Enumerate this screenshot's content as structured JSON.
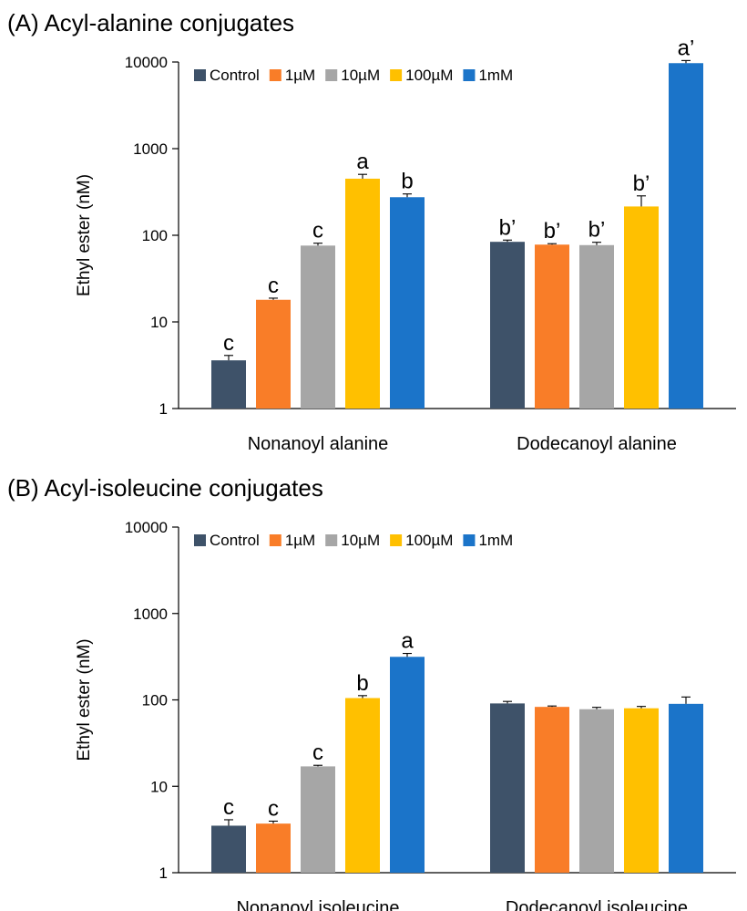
{
  "colors": {
    "Control": "#3e5269",
    "1µM": "#f97d28",
    "10µM": "#a6a6a6",
    "100µM": "#ffc000",
    "1mM": "#1b74c9"
  },
  "chart_data": [
    {
      "type": "bar",
      "title": "(A) Acyl-alanine conjugates",
      "ylabel": "Ethyl ester (nM)",
      "xlabel": "",
      "yscale": "log",
      "ylim": [
        1,
        10000
      ],
      "yticks": [
        "1",
        "10",
        "100",
        "1000",
        "10000"
      ],
      "legend_position": "top-left",
      "categories": [
        "Nonanoyl alanine",
        "Dodecanoyl alanine"
      ],
      "series": [
        {
          "name": "Control",
          "values": [
            3.6,
            84
          ],
          "errors": [
            0.5,
            4
          ],
          "labels": [
            "c",
            "b’"
          ]
        },
        {
          "name": "1µM",
          "values": [
            18,
            78
          ],
          "errors": [
            0.8,
            2
          ],
          "labels": [
            "c",
            "b’"
          ]
        },
        {
          "name": "10µM",
          "values": [
            76,
            77
          ],
          "errors": [
            5,
            6
          ],
          "labels": [
            "c",
            "b’"
          ]
        },
        {
          "name": "100µM",
          "values": [
            450,
            215
          ],
          "errors": [
            55,
            70
          ],
          "labels": [
            "a",
            "b’"
          ]
        },
        {
          "name": "1mM",
          "values": [
            275,
            9700
          ],
          "errors": [
            25,
            700
          ],
          "labels": [
            "b",
            "a’"
          ]
        }
      ]
    },
    {
      "type": "bar",
      "title": "(B) Acyl-isoleucine conjugates",
      "ylabel": "Ethyl ester (nM)",
      "xlabel": "",
      "yscale": "log",
      "ylim": [
        1,
        10000
      ],
      "yticks": [
        "1",
        "10",
        "100",
        "1000",
        "10000"
      ],
      "legend_position": "top-left",
      "categories": [
        "Nonanoyl isoleucine",
        "Dodecanoyl isoleucine"
      ],
      "series": [
        {
          "name": "Control",
          "values": [
            3.5,
            91
          ],
          "errors": [
            0.6,
            5
          ],
          "labels": [
            "c",
            ""
          ]
        },
        {
          "name": "1µM",
          "values": [
            3.7,
            83
          ],
          "errors": [
            0.25,
            2
          ],
          "labels": [
            "c",
            ""
          ]
        },
        {
          "name": "10µM",
          "values": [
            17,
            78
          ],
          "errors": [
            0.5,
            4
          ],
          "labels": [
            "c",
            ""
          ]
        },
        {
          "name": "100µM",
          "values": [
            105,
            80
          ],
          "errors": [
            7,
            4
          ],
          "labels": [
            "b",
            ""
          ]
        },
        {
          "name": "1mM",
          "values": [
            315,
            90
          ],
          "errors": [
            30,
            18
          ],
          "labels": [
            "a",
            ""
          ]
        }
      ]
    }
  ]
}
